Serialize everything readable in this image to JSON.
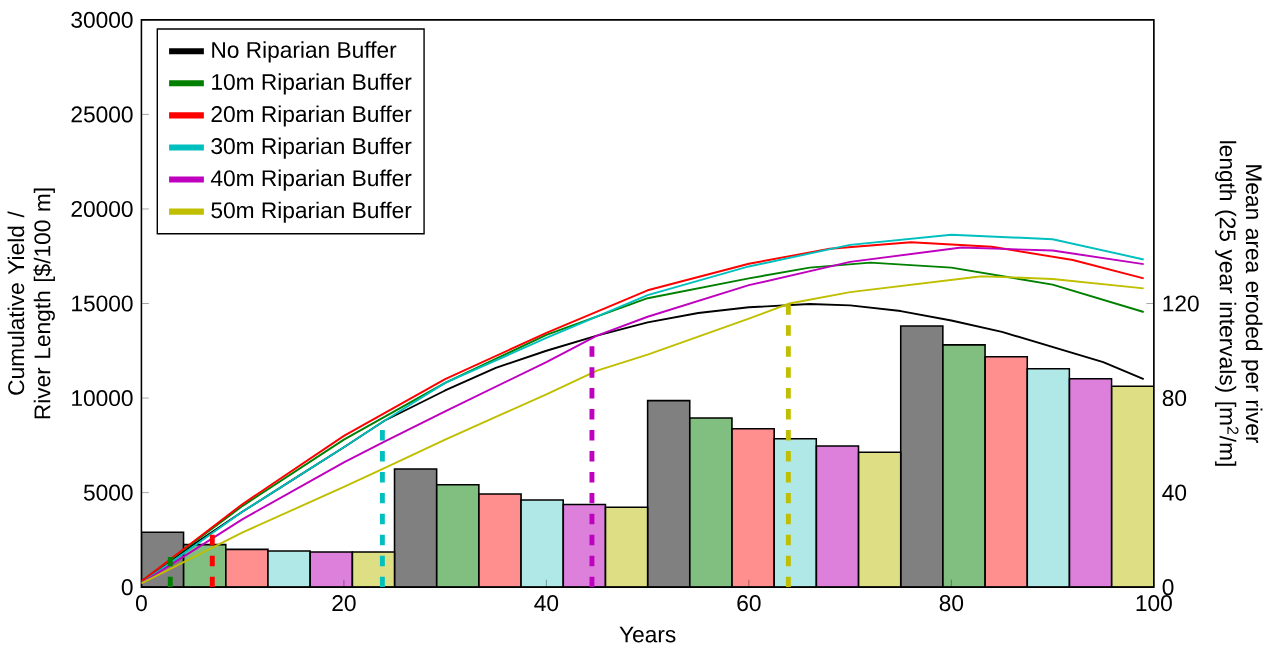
{
  "chart_data": {
    "type": "line",
    "xlabel": "Years",
    "ylabel": "Cumulative Yield / River Length [$/100 m]",
    "y2label": "Mean area eroded per river length (25 year intervals) [m$^{2}$/m]",
    "xlim": [
      0,
      100
    ],
    "xticks": [
      0,
      20,
      40,
      60,
      80,
      100
    ],
    "ylim": [
      0,
      30000
    ],
    "yticks": [
      0,
      5000,
      10000,
      15000,
      20000,
      25000,
      30000
    ],
    "y2lim": [
      0,
      240
    ],
    "y2ticks": [
      0,
      40,
      80,
      120
    ],
    "legend": "top left",
    "marker": "none",
    "series": [
      {
        "type": "bar",
        "axis": "y2",
        "color": "#808080",
        "x": [
          2.08,
          27.08,
          52.08,
          77.08
        ],
        "values": [
          23.2,
          50,
          78.9,
          110.5
        ]
      },
      {
        "type": "bar",
        "axis": "y2",
        "color": "#80bf80",
        "x": [
          6.25,
          31.25,
          56.25,
          81.25
        ],
        "values": [
          18,
          43.3,
          71.6,
          102.5
        ]
      },
      {
        "type": "bar",
        "axis": "y2",
        "color": "#ff8f8f",
        "x": [
          10.42,
          35.42,
          60.42,
          85.42
        ],
        "values": [
          16,
          39.4,
          67,
          97.5
        ]
      },
      {
        "type": "bar",
        "axis": "y2",
        "color": "#b0e8e8",
        "x": [
          14.58,
          39.58,
          64.58,
          89.58
        ],
        "values": [
          15.3,
          36.9,
          62.8,
          92.4
        ]
      },
      {
        "type": "bar",
        "axis": "y2",
        "color": "#dc80dc",
        "x": [
          18.75,
          43.75,
          68.75,
          93.75
        ],
        "values": [
          14.9,
          35,
          59.7,
          88.2
        ]
      },
      {
        "type": "bar",
        "axis": "y2",
        "color": "#dede84",
        "x": [
          22.92,
          47.92,
          72.92,
          97.92
        ],
        "values": [
          14.9,
          33.8,
          57.1,
          85
        ]
      },
      {
        "name": "No Riparian Buffer",
        "color": "#000000",
        "x": [
          0,
          5,
          10,
          15,
          20,
          24,
          30,
          35,
          40,
          45,
          50,
          55,
          60,
          66,
          70,
          75,
          80,
          85,
          90,
          95,
          99
        ],
        "values": [
          300,
          2200,
          4000,
          5700,
          7400,
          8800,
          10400,
          11600,
          12500,
          13300,
          14000,
          14500,
          14800,
          14970,
          14900,
          14600,
          14100,
          13500,
          12700,
          11900,
          11000
        ]
      },
      {
        "name": "10m Riparian Buffer",
        "color": "#008000",
        "x": [
          0,
          10,
          20,
          30,
          40,
          50,
          60,
          66,
          72,
          80,
          90,
          99
        ],
        "values": [
          300,
          4300,
          7800,
          10800,
          13340,
          15280,
          16330,
          16900,
          17160,
          16900,
          16000,
          14550
        ]
      },
      {
        "name": "20m Riparian Buffer",
        "color": "#ff0000",
        "x": [
          0,
          10,
          20,
          30,
          40,
          50,
          60,
          68,
          76,
          84,
          92,
          99
        ],
        "values": [
          300,
          4400,
          8000,
          11000,
          13450,
          15700,
          17100,
          17900,
          18240,
          18000,
          17300,
          16330
        ]
      },
      {
        "name": "30m Riparian Buffer",
        "color": "#00bfbf",
        "x": [
          0,
          10,
          20,
          24,
          30,
          40,
          50,
          60,
          70,
          80,
          90,
          99
        ],
        "values": [
          200,
          4000,
          7400,
          8800,
          10800,
          13180,
          15440,
          16960,
          18100,
          18640,
          18400,
          17330
        ]
      },
      {
        "name": "40m Riparian Buffer",
        "color": "#bf00bf",
        "x": [
          0,
          10,
          20,
          24,
          30,
          40,
          45,
          50,
          60,
          70,
          81,
          90,
          99
        ],
        "values": [
          200,
          3600,
          6600,
          7700,
          9300,
          11900,
          13300,
          14300,
          15970,
          17200,
          17960,
          17800,
          17085
        ]
      },
      {
        "name": "50m Riparian Buffer",
        "color": "#bfbf00",
        "x": [
          0,
          10,
          20,
          24,
          30,
          36,
          40,
          45,
          50,
          60,
          64,
          70,
          83,
          90,
          99
        ],
        "values": [
          200,
          2900,
          5300,
          6300,
          7800,
          9240,
          10200,
          11450,
          12300,
          14200,
          15000,
          15600,
          16440,
          16300,
          15800
        ]
      },
      {
        "type": "line",
        "line_style": "dashed",
        "color": "#008000",
        "x": [
          2.85,
          2.85
        ],
        "values": [
          0,
          1600
        ]
      },
      {
        "type": "line",
        "line_style": "dashed",
        "color": "#ff0000",
        "x": [
          7,
          7
        ],
        "values": [
          0,
          3150
        ]
      },
      {
        "type": "line",
        "line_style": "dashed",
        "color": "#00bfbf",
        "x": [
          23.8,
          23.8
        ],
        "values": [
          0,
          8800
        ]
      },
      {
        "type": "line",
        "line_style": "dashed",
        "color": "#bf00bf",
        "x": [
          44.5,
          44.5
        ],
        "values": [
          0,
          13300
        ]
      },
      {
        "type": "line",
        "line_style": "dashed",
        "color": "#bfbf00",
        "x": [
          63.9,
          63.9
        ],
        "values": [
          0,
          15000
        ]
      }
    ]
  }
}
